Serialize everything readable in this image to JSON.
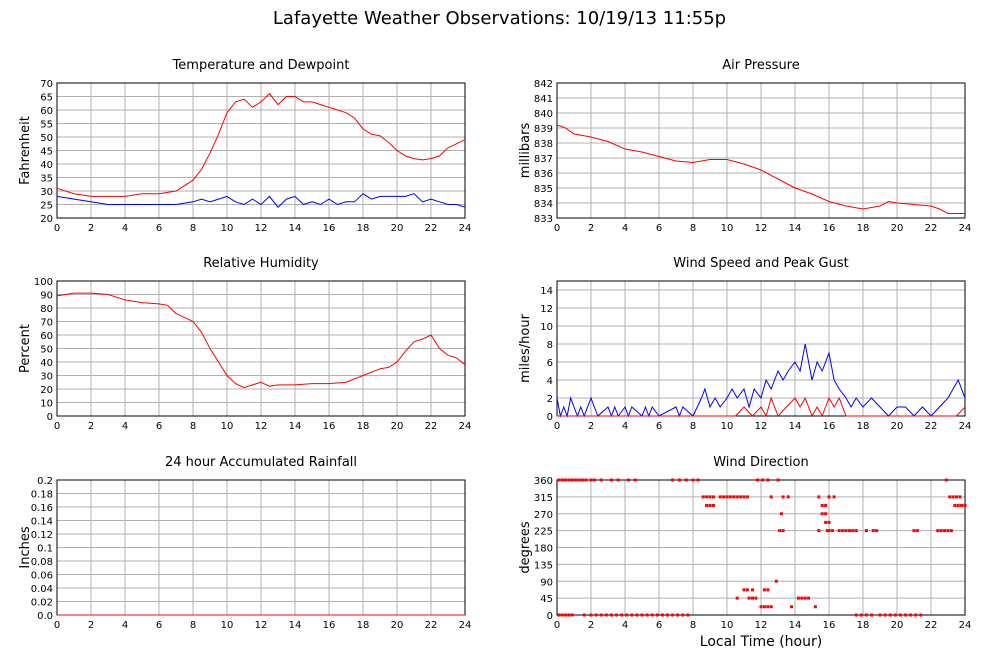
{
  "page": {
    "title": "Lafayette Weather Observations: 10/19/13 11:55p",
    "shared_xlabel": "Local Time (hour)"
  },
  "chart_data": [
    {
      "id": "temp",
      "type": "line",
      "title": "Temperature and Dewpoint",
      "ylabel": "Fahrenheit",
      "xlabel": "",
      "xlim": [
        0,
        24
      ],
      "ylim": [
        20,
        70
      ],
      "xticks": [
        0,
        2,
        4,
        6,
        8,
        10,
        12,
        14,
        16,
        18,
        20,
        22,
        24
      ],
      "yticks": [
        20,
        25,
        30,
        35,
        40,
        45,
        50,
        55,
        60,
        65,
        70
      ],
      "grid": true,
      "series": [
        {
          "color": "#ff0000",
          "x": [
            0,
            1,
            2,
            3,
            4,
            5,
            6,
            7,
            7.5,
            8,
            8.5,
            9,
            9.5,
            10,
            10.5,
            11,
            11.5,
            12,
            12.5,
            13,
            13.5,
            14,
            14.5,
            15,
            15.5,
            16,
            16.5,
            17,
            17.5,
            18,
            18.5,
            19,
            19.5,
            20,
            20.5,
            21,
            21.5,
            22,
            22.5,
            23,
            23.5,
            24
          ],
          "y": [
            31,
            29,
            28,
            28,
            28,
            29,
            29,
            30,
            32,
            34,
            38,
            44,
            51,
            59,
            63,
            64,
            61,
            63,
            66,
            62,
            65,
            65,
            63,
            63,
            62,
            61,
            60,
            59,
            57,
            53,
            51,
            50.5,
            48,
            45,
            43,
            42,
            41.5,
            42,
            43,
            46,
            47.5,
            49
          ]
        },
        {
          "color": "#0000ff",
          "x": [
            0,
            1,
            2,
            3,
            4,
            5,
            6,
            7,
            8,
            8.5,
            9,
            9.5,
            10,
            10.5,
            11,
            11.5,
            12,
            12.5,
            13,
            13.5,
            14,
            14.5,
            15,
            15.5,
            16,
            16.5,
            17,
            17.5,
            18,
            18.5,
            19,
            19.5,
            20,
            20.5,
            21,
            21.5,
            22,
            22.5,
            23,
            23.5,
            24
          ],
          "y": [
            28,
            27,
            26,
            25,
            25,
            25,
            25,
            25,
            26,
            27,
            26,
            27,
            28,
            26,
            25,
            27,
            25,
            28,
            24,
            27,
            28,
            25,
            26,
            25,
            27,
            25,
            26,
            26,
            29,
            27,
            28,
            28,
            28,
            28,
            29,
            26,
            27,
            26,
            25,
            25,
            24
          ]
        }
      ]
    },
    {
      "id": "pressure",
      "type": "line",
      "title": "Air Pressure",
      "ylabel": "millibars",
      "xlabel": "",
      "xlim": [
        0,
        24
      ],
      "ylim": [
        833,
        842
      ],
      "xticks": [
        0,
        2,
        4,
        6,
        8,
        10,
        12,
        14,
        16,
        18,
        20,
        22,
        24
      ],
      "yticks": [
        833,
        834,
        835,
        836,
        837,
        838,
        839,
        840,
        841,
        842
      ],
      "grid": true,
      "series": [
        {
          "color": "#ff0000",
          "x": [
            0,
            0.5,
            1,
            2,
            3,
            4,
            5,
            6,
            7,
            8,
            9,
            10,
            11,
            12,
            13,
            14,
            15,
            16,
            17,
            18,
            19,
            19.5,
            20,
            21,
            22,
            22.5,
            23,
            24
          ],
          "y": [
            839.2,
            839,
            838.6,
            838.4,
            838.1,
            837.6,
            837.4,
            837.1,
            836.8,
            836.7,
            836.9,
            836.9,
            836.6,
            836.2,
            835.6,
            835,
            834.6,
            834.1,
            833.8,
            833.6,
            833.8,
            834.1,
            834.0,
            833.9,
            833.8,
            833.6,
            833.3,
            833.3
          ]
        }
      ]
    },
    {
      "id": "humidity",
      "type": "line",
      "title": "Relative Humidity",
      "ylabel": "Percent",
      "xlabel": "",
      "xlim": [
        0,
        24
      ],
      "ylim": [
        0,
        100
      ],
      "xticks": [
        0,
        2,
        4,
        6,
        8,
        10,
        12,
        14,
        16,
        18,
        20,
        22,
        24
      ],
      "yticks": [
        0,
        10,
        20,
        30,
        40,
        50,
        60,
        70,
        80,
        90,
        100
      ],
      "grid": true,
      "series": [
        {
          "color": "#ff0000",
          "x": [
            0,
            0.5,
            1,
            2,
            3,
            3.5,
            4,
            5,
            6,
            6.5,
            7,
            7.5,
            8,
            8.5,
            9,
            9.5,
            10,
            10.5,
            11,
            11.5,
            12,
            12.5,
            13,
            14,
            15,
            16,
            17,
            18,
            19,
            19.5,
            20,
            20.5,
            21,
            21.5,
            22,
            22.5,
            23,
            23.5,
            24
          ],
          "y": [
            89,
            90,
            91,
            91,
            90,
            88,
            86,
            84,
            83,
            82,
            76,
            73,
            70,
            62,
            50,
            40,
            30,
            24,
            21,
            23,
            25,
            22,
            23,
            23,
            24,
            24,
            25,
            30,
            35,
            36,
            40,
            48,
            55,
            57,
            60,
            50,
            45,
            43,
            38
          ]
        }
      ]
    },
    {
      "id": "wind",
      "type": "line",
      "title": "Wind Speed and Peak Gust",
      "ylabel": "miles/hour",
      "xlabel": "",
      "xlim": [
        0,
        24
      ],
      "ylim": [
        0,
        15
      ],
      "xticks": [
        0,
        2,
        4,
        6,
        8,
        10,
        12,
        14,
        16,
        18,
        20,
        22,
        24
      ],
      "yticks": [
        0,
        2,
        4,
        6,
        8,
        10,
        12,
        14
      ],
      "grid": true,
      "series": [
        {
          "color": "#0000ff",
          "x": [
            0,
            0.2,
            0.4,
            0.6,
            0.8,
            1,
            1.2,
            1.4,
            1.6,
            2,
            2.2,
            2.4,
            3,
            3.2,
            3.4,
            3.6,
            4,
            4.2,
            4.4,
            5,
            5.2,
            5.4,
            5.6,
            6,
            7,
            7.2,
            7.4,
            8,
            8.5,
            8.7,
            9,
            9.3,
            9.6,
            10,
            10.3,
            10.6,
            11,
            11.3,
            11.6,
            12,
            12.3,
            12.6,
            13,
            13.3,
            13.6,
            14,
            14.3,
            14.6,
            15,
            15.3,
            15.6,
            16,
            16.3,
            16.6,
            17,
            17.3,
            17.6,
            18,
            18.5,
            19,
            19.5,
            20,
            20.5,
            21,
            21.5,
            22,
            22.5,
            23,
            23.3,
            23.6,
            24
          ],
          "y": [
            2,
            0,
            1,
            0,
            2,
            1,
            0,
            1,
            0,
            2,
            1,
            0,
            1,
            0,
            1,
            0,
            1,
            0,
            1,
            0,
            1,
            0,
            1,
            0,
            1,
            0,
            1,
            0,
            2,
            3,
            1,
            2,
            1,
            2,
            3,
            2,
            3,
            1,
            3,
            2,
            4,
            3,
            5,
            4,
            5,
            6,
            5,
            8,
            4,
            6,
            5,
            7,
            4,
            3,
            2,
            1,
            2,
            1,
            2,
            1,
            0,
            1,
            1,
            0,
            1,
            0,
            1,
            2,
            3,
            4,
            2
          ]
        },
        {
          "color": "#ff0000",
          "x": [
            0,
            0.5,
            1,
            10.5,
            11,
            11.5,
            12,
            12.3,
            12.6,
            13,
            13.5,
            14,
            14.3,
            14.6,
            15,
            15.3,
            15.6,
            16,
            16.3,
            16.6,
            17,
            17.5,
            23.5,
            24
          ],
          "y": [
            0,
            0,
            0,
            0,
            1,
            0,
            1,
            0,
            2,
            0,
            1,
            2,
            1,
            2,
            0,
            1,
            0,
            2,
            1,
            2,
            0,
            0,
            0,
            1
          ]
        }
      ]
    },
    {
      "id": "rain",
      "type": "line",
      "title": "24 hour Accumulated Rainfall",
      "ylabel": "Inches",
      "xlabel": "",
      "xlim": [
        0,
        24
      ],
      "ylim": [
        0,
        0.2
      ],
      "xticks": [
        0,
        2,
        4,
        6,
        8,
        10,
        12,
        14,
        16,
        18,
        20,
        22,
        24
      ],
      "yticks": [
        0.0,
        0.02,
        0.04,
        0.06,
        0.08,
        0.1,
        0.12,
        0.14,
        0.16,
        0.18,
        0.2
      ],
      "yticklabels": [
        "0.0",
        "0.02",
        "0.04",
        "0.06",
        "0.08",
        "0.1",
        "0.12",
        "0.14",
        "0.16",
        "0.18",
        "0.2"
      ],
      "grid": true,
      "series": [
        {
          "color": "#ff0000",
          "x": [
            0,
            24
          ],
          "y": [
            0,
            0
          ]
        }
      ]
    },
    {
      "id": "direction",
      "type": "scatter",
      "title": "Wind Direction",
      "ylabel": "degrees",
      "xlabel": "Local Time (hour)",
      "xlim": [
        0,
        24
      ],
      "ylim": [
        0,
        360
      ],
      "xticks": [
        0,
        2,
        4,
        6,
        8,
        10,
        12,
        14,
        16,
        18,
        20,
        22,
        24
      ],
      "yticks": [
        0,
        45,
        90,
        135,
        180,
        225,
        270,
        315,
        360
      ],
      "grid": true,
      "series": [
        {
          "color": "#ff0000",
          "x": [
            0.1,
            0.3,
            0.5,
            0.7,
            0.9,
            1.1,
            1.3,
            1.5,
            1.7,
            2.0,
            2.2,
            2.6,
            3.2,
            3.6,
            4.2,
            4.6,
            6.8,
            7.2,
            7.6,
            8.0,
            8.3,
            11.8,
            12.1,
            12.4,
            13.0,
            22.9,
            0.1,
            0.3,
            0.5,
            0.7,
            0.9,
            1.6,
            2.0,
            2.3,
            2.6,
            2.9,
            3.2,
            3.5,
            3.8,
            4.1,
            4.4,
            4.7,
            5.0,
            5.3,
            5.6,
            5.9,
            6.2,
            6.5,
            6.8,
            7.1,
            7.4,
            7.7,
            17.6,
            17.9,
            18.2,
            18.5,
            19.0,
            19.3,
            19.6,
            19.9,
            20.2,
            20.5,
            20.8,
            21.1,
            21.4,
            8.6,
            8.8,
            9.0,
            9.2,
            9.6,
            9.8,
            10.0,
            10.2,
            10.4,
            10.6,
            10.8,
            11.0,
            11.2,
            12.6,
            13.3,
            13.6,
            15.4,
            16.0,
            16.3,
            23.1,
            23.3,
            23.5,
            23.7,
            8.8,
            9.0,
            9.2,
            15.6,
            15.8,
            23.4,
            23.6,
            23.8,
            24.0,
            13.1,
            13.3,
            15.4,
            15.9,
            16.0,
            16.2,
            16.6,
            16.8,
            17.0,
            17.2,
            17.4,
            17.6,
            18.2,
            18.6,
            18.8,
            21.0,
            21.2,
            22.4,
            22.6,
            22.8,
            23.0,
            23.2,
            13.2,
            15.6,
            15.8,
            15.8,
            16.0,
            11.0,
            11.2,
            11.5,
            12.2,
            12.4,
            10.6,
            11.3,
            11.5,
            11.7,
            14.2,
            14.4,
            14.6,
            14.8,
            12.0,
            12.2,
            12.4,
            12.6,
            13.8,
            15.2,
            12.9
          ],
          "y": [
            360,
            360,
            360,
            360,
            360,
            360,
            360,
            360,
            360,
            360,
            360,
            360,
            360,
            360,
            360,
            360,
            360,
            360,
            360,
            360,
            360,
            360,
            360,
            360,
            360,
            360,
            0,
            0,
            0,
            0,
            0,
            0,
            0,
            0,
            0,
            0,
            0,
            0,
            0,
            0,
            0,
            0,
            0,
            0,
            0,
            0,
            0,
            0,
            0,
            0,
            0,
            0,
            0,
            0,
            0,
            0,
            0,
            0,
            0,
            0,
            0,
            0,
            0,
            0,
            0,
            315,
            315,
            315,
            315,
            315,
            315,
            315,
            315,
            315,
            315,
            315,
            315,
            315,
            315,
            315,
            315,
            315,
            315,
            315,
            315,
            315,
            315,
            315,
            292,
            292,
            292,
            292,
            292,
            292,
            292,
            292,
            292,
            225,
            225,
            225,
            225,
            225,
            225,
            225,
            225,
            225,
            225,
            225,
            225,
            225,
            225,
            225,
            225,
            225,
            225,
            225,
            225,
            225,
            225,
            270,
            270,
            270,
            247,
            247,
            67,
            67,
            67,
            67,
            67,
            45,
            45,
            45,
            45,
            45,
            45,
            45,
            45,
            22,
            22,
            22,
            22,
            22,
            22,
            90
          ]
        }
      ]
    }
  ]
}
